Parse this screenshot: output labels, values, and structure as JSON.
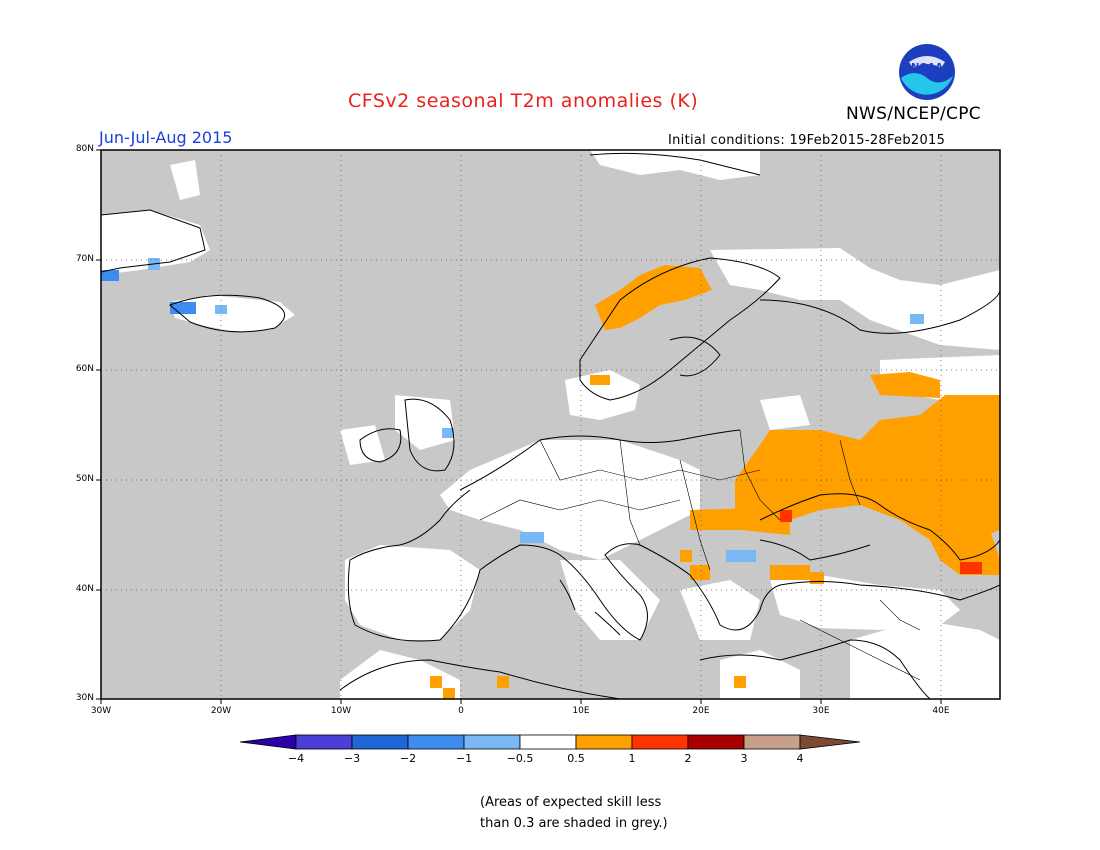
{
  "header": {
    "title": "CFSv2 seasonal T2m anomalies (K)",
    "agency": "NWS/NCEP/CPC",
    "period": "Jun-Jul-Aug 2015",
    "initial_conditions": "Initial conditions: 19Feb2015-28Feb2015"
  },
  "logo": {
    "icon": "noaa-logo",
    "text": "NOAA"
  },
  "map": {
    "region": "Europe",
    "lat_range": [
      30,
      80
    ],
    "lon_range": [
      -30,
      45
    ],
    "lat_labels": [
      "80N",
      "70N",
      "60N",
      "50N",
      "40N",
      "30N"
    ],
    "lon_labels": [
      "30W",
      "20W",
      "10W",
      "0",
      "10E",
      "20E",
      "30E",
      "40E"
    ],
    "grid": "dotted"
  },
  "colorbar": {
    "labels": [
      "−4",
      "−3",
      "−2",
      "−1",
      "−0.5",
      "0.5",
      "1",
      "2",
      "3",
      "4"
    ],
    "colors": [
      "#2a00a8",
      "#4b3fd6",
      "#1f66d6",
      "#3d8df0",
      "#7ab7f5",
      "#ffffff",
      "#ffa000",
      "#ff3300",
      "#a80000",
      "#c8a08a",
      "#7a4a33"
    ]
  },
  "colors": {
    "low_skill_grey": "#c8c8c8",
    "warm_anomaly": "#ffa000",
    "strong_warm": "#ff3300",
    "cool_anomaly": "#7ab7f5"
  },
  "note": {
    "line1": "(Areas of expected skill less",
    "line2": "than 0.3 are shaded in grey.)"
  }
}
